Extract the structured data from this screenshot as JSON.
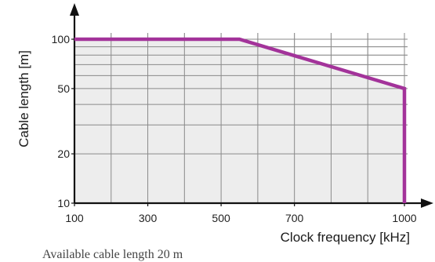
{
  "chart_data": {
    "type": "area",
    "title": "",
    "xlabel": "Clock frequency [kHz]",
    "ylabel": "Cable length [m]",
    "x_ticks": [
      100,
      300,
      500,
      700,
      1000
    ],
    "x_tick_labels": [
      "100",
      "300",
      "500",
      "700",
      "1000"
    ],
    "y_ticks": [
      10,
      20,
      50,
      100
    ],
    "y_tick_labels": [
      "10",
      "20",
      "50",
      "100"
    ],
    "xlim": [
      100,
      1000
    ],
    "ylim": [
      10,
      100
    ],
    "y_scale": "log",
    "grid": true,
    "series": [
      {
        "x": [
          100,
          550,
          1000,
          1000
        ],
        "y": [
          100,
          100,
          50,
          10
        ]
      }
    ],
    "line_color": "#a3339a",
    "fill_color": "#ededed"
  },
  "footer": {
    "text": "Available cable length 20 m"
  }
}
